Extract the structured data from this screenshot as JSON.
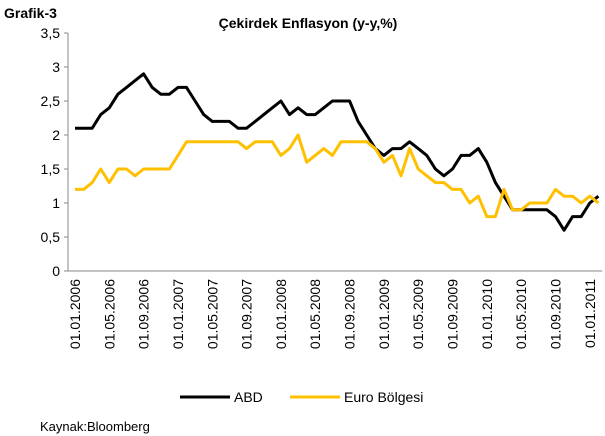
{
  "chart_data": {
    "type": "line",
    "label": "Grafik-3",
    "title": "Çekirdek Enflasyon (y-y,%)",
    "source": "Kaynak:Bloomberg",
    "categories": [
      "01.01.2006",
      null,
      null,
      null,
      "01.05.2006",
      null,
      null,
      null,
      "01.09.2006",
      null,
      null,
      null,
      "01.01.2007",
      null,
      null,
      null,
      "01.05.2007",
      null,
      null,
      null,
      "01.09.2007",
      null,
      null,
      null,
      "01.01.2008",
      null,
      null,
      null,
      "01.05.2008",
      null,
      null,
      null,
      "01.09.2008",
      null,
      null,
      null,
      "01.01.2009",
      null,
      null,
      null,
      "01.05.2009",
      null,
      null,
      null,
      "01.09.2009",
      null,
      null,
      null,
      "01.01.2010",
      null,
      null,
      null,
      "01.05.2010",
      null,
      null,
      null,
      "01.09.2010",
      null,
      null,
      null,
      "01.01.2011",
      null
    ],
    "series": [
      {
        "name": "ABD",
        "color": "#000000",
        "values": [
          2.1,
          2.1,
          2.1,
          2.3,
          2.4,
          2.6,
          2.7,
          2.8,
          2.9,
          2.7,
          2.6,
          2.6,
          2.7,
          2.7,
          2.5,
          2.3,
          2.2,
          2.2,
          2.2,
          2.1,
          2.1,
          2.2,
          2.3,
          2.4,
          2.5,
          2.3,
          2.4,
          2.3,
          2.3,
          2.4,
          2.5,
          2.5,
          2.5,
          2.2,
          2.0,
          1.8,
          1.7,
          1.8,
          1.8,
          1.9,
          1.8,
          1.7,
          1.5,
          1.4,
          1.5,
          1.7,
          1.7,
          1.8,
          1.6,
          1.3,
          1.1,
          0.9,
          0.9,
          0.9,
          0.9,
          0.9,
          0.8,
          0.6,
          0.8,
          0.8,
          1.0,
          1.1
        ]
      },
      {
        "name": "Euro Bölgesi",
        "color": "#ffc000",
        "values": [
          1.2,
          1.2,
          1.3,
          1.5,
          1.3,
          1.5,
          1.5,
          1.4,
          1.5,
          1.5,
          1.5,
          1.5,
          1.7,
          1.9,
          1.9,
          1.9,
          1.9,
          1.9,
          1.9,
          1.9,
          1.8,
          1.9,
          1.9,
          1.9,
          1.7,
          1.8,
          2.0,
          1.6,
          1.7,
          1.8,
          1.7,
          1.9,
          1.9,
          1.9,
          1.9,
          1.8,
          1.6,
          1.7,
          1.4,
          1.8,
          1.5,
          1.4,
          1.3,
          1.3,
          1.2,
          1.2,
          1.0,
          1.1,
          0.8,
          0.8,
          1.2,
          0.9,
          0.9,
          1.0,
          1.0,
          1.0,
          1.2,
          1.1,
          1.1,
          1.0,
          1.1,
          1.0
        ]
      }
    ],
    "ylim": [
      0,
      3.5
    ],
    "yticks": [
      0,
      {
        "value": 0.5,
        "label": "0,5"
      },
      1,
      {
        "value": 1.5,
        "label": "1,5"
      },
      2,
      {
        "value": 2.5,
        "label": "2,5"
      },
      3,
      {
        "value": 3.5,
        "label": "3,5"
      }
    ],
    "legend": "bottom"
  }
}
